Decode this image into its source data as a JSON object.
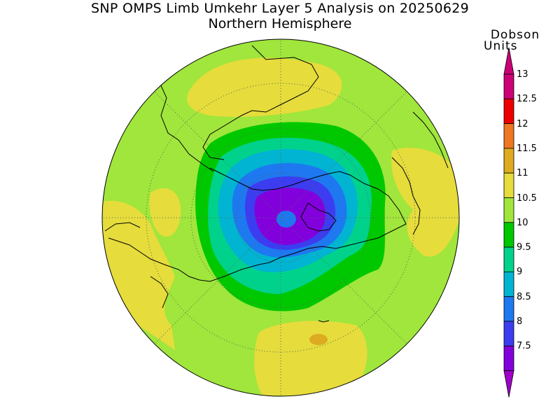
{
  "title": "SNP OMPS Limb Umkehr Layer 5 Analysis on 20250629",
  "subtitle": "Northern Hemisphere",
  "colorbar": {
    "units_line1": "Dobson",
    "units_line2": "Units",
    "levels": [
      {
        "label": "13",
        "color": "#cc0077"
      },
      {
        "label": "12.5",
        "color": "#ee0000"
      },
      {
        "label": "12",
        "color": "#ee7722"
      },
      {
        "label": "11.5",
        "color": "#ddaa22"
      },
      {
        "label": "11",
        "color": "#e6dc3c"
      },
      {
        "label": "10.5",
        "color": "#a0e63c"
      },
      {
        "label": "10",
        "color": "#00c800"
      },
      {
        "label": "9.5",
        "color": "#00d28c"
      },
      {
        "label": "9",
        "color": "#00b4d2"
      },
      {
        "label": "8.5",
        "color": "#1e78f0"
      },
      {
        "label": "8",
        "color": "#3c3cf0"
      },
      {
        "label": "7.5",
        "color": "#8200dc"
      }
    ],
    "top_arrow_color": "#cc0077",
    "bottom_arrow_color": "#a000c8"
  },
  "map": {
    "projection": "north polar stereographic",
    "background_color": "#a0e63c"
  }
}
